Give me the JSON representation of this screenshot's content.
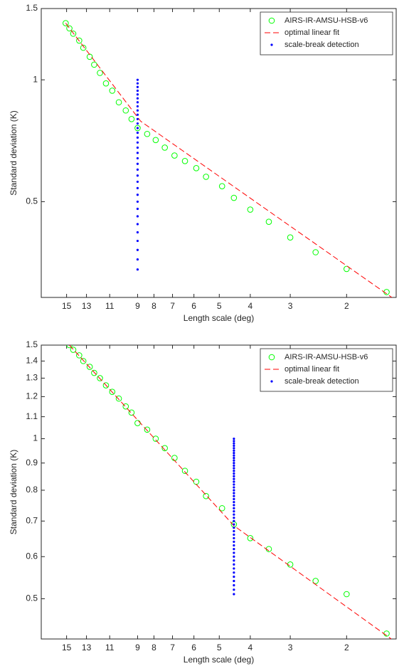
{
  "chart_data": [
    {
      "type": "line",
      "xlabel": "Length scale (deg)",
      "ylabel": "Standard deviation (K)",
      "xscale": "log",
      "yscale": "log",
      "xlim": [
        18,
        1.4
      ],
      "ylim": [
        0.29,
        1.5
      ],
      "xticks": [
        15,
        13,
        11,
        9,
        8,
        7,
        6,
        5,
        4,
        3,
        2
      ],
      "yticks": [
        0.5,
        1,
        1.5
      ],
      "legend": "upper right",
      "series": [
        {
          "name": "AIRS-IR-AMSU-HSB-v6",
          "color": "#00ff00",
          "style": "circle",
          "x": [
            15.1,
            14.7,
            14.3,
            13.7,
            13.3,
            12.7,
            12.3,
            11.8,
            11.3,
            10.8,
            10.3,
            9.8,
            9.4,
            9.0,
            8.4,
            7.9,
            7.4,
            6.9,
            6.4,
            5.9,
            5.5,
            4.9,
            4.5,
            4.0,
            3.5,
            3.0,
            2.5,
            2.0,
            1.5
          ],
          "values": [
            1.38,
            1.34,
            1.3,
            1.25,
            1.2,
            1.14,
            1.09,
            1.04,
            0.98,
            0.94,
            0.88,
            0.84,
            0.8,
            0.76,
            0.735,
            0.71,
            0.68,
            0.65,
            0.63,
            0.605,
            0.576,
            0.546,
            0.511,
            0.478,
            0.446,
            0.408,
            0.375,
            0.341,
            0.299
          ]
        },
        {
          "name": "optimal linear fit",
          "color": "#ff0000",
          "style": "dashed",
          "x": [
            15.1,
            8.8,
            1.4
          ],
          "values": [
            1.38,
            0.79,
            0.285
          ]
        },
        {
          "name": "scale-break detection",
          "color": "#0000ff",
          "style": "dot",
          "x": [
            9,
            9,
            9,
            9,
            9,
            9,
            9,
            9,
            9,
            9,
            9,
            9,
            9,
            9,
            9,
            9,
            9,
            9,
            9,
            9,
            9,
            9,
            9,
            9,
            9,
            9,
            9,
            9,
            9,
            9,
            9,
            9,
            9,
            9
          ],
          "values": [
            0.34,
            0.36,
            0.38,
            0.4,
            0.42,
            0.44,
            0.46,
            0.48,
            0.5,
            0.52,
            0.54,
            0.56,
            0.58,
            0.6,
            0.62,
            0.64,
            0.66,
            0.68,
            0.7,
            0.72,
            0.74,
            0.76,
            0.78,
            0.8,
            0.82,
            0.84,
            0.86,
            0.88,
            0.9,
            0.92,
            0.94,
            0.96,
            0.98,
            1.0
          ]
        }
      ]
    },
    {
      "type": "line",
      "xlabel": "Length scale (deg)",
      "ylabel": "Standard deviation (K)",
      "xscale": "log",
      "yscale": "log",
      "xlim": [
        18,
        1.4
      ],
      "ylim": [
        0.42,
        1.5
      ],
      "xticks": [
        15,
        13,
        11,
        9,
        8,
        7,
        6,
        5,
        4,
        3,
        2
      ],
      "yticks": [
        0.5,
        0.6,
        0.7,
        0.8,
        0.9,
        1,
        1.1,
        1.2,
        1.3,
        1.4,
        1.5
      ],
      "legend": "upper right",
      "series": [
        {
          "name": "AIRS-IR-AMSU-HSB-v6",
          "color": "#00ff00",
          "style": "circle",
          "x": [
            14.7,
            14.3,
            13.7,
            13.3,
            12.7,
            12.3,
            11.8,
            11.3,
            10.8,
            10.3,
            9.8,
            9.4,
            9.0,
            8.4,
            7.9,
            7.4,
            6.9,
            6.4,
            5.9,
            5.5,
            4.9,
            4.5,
            4.0,
            3.5,
            3.0,
            2.5,
            2.0,
            1.5
          ],
          "values": [
            1.5,
            1.47,
            1.435,
            1.4,
            1.365,
            1.33,
            1.3,
            1.26,
            1.225,
            1.19,
            1.15,
            1.12,
            1.07,
            1.04,
            1.0,
            0.96,
            0.92,
            0.87,
            0.83,
            0.78,
            0.74,
            0.69,
            0.65,
            0.62,
            0.58,
            0.54,
            0.51,
            0.43
          ]
        },
        {
          "name": "optimal linear fit",
          "color": "#ff0000",
          "style": "dashed",
          "x": [
            14.7,
            4.5,
            1.45
          ],
          "values": [
            1.5,
            0.686,
            0.42
          ]
        },
        {
          "name": "scale-break detection",
          "color": "#0000ff",
          "style": "dot",
          "x": [
            4.5,
            4.5,
            4.5,
            4.5,
            4.5,
            4.5,
            4.5,
            4.5,
            4.5,
            4.5,
            4.5,
            4.5,
            4.5,
            4.5,
            4.5,
            4.5,
            4.5,
            4.5,
            4.5,
            4.5,
            4.5,
            4.5,
            4.5,
            4.5,
            4.5,
            4.5,
            4.5,
            4.5,
            4.5,
            4.5,
            4.5,
            4.5,
            4.5,
            4.5,
            4.5,
            4.5,
            4.5,
            4.5,
            4.5,
            4.5,
            4.5,
            4.5,
            4.5,
            4.5,
            4.5,
            4.5,
            4.5,
            4.5,
            4.5,
            4.5
          ],
          "values": [
            0.51,
            0.52,
            0.53,
            0.54,
            0.55,
            0.56,
            0.57,
            0.58,
            0.59,
            0.6,
            0.61,
            0.62,
            0.63,
            0.64,
            0.65,
            0.66,
            0.67,
            0.68,
            0.69,
            0.7,
            0.71,
            0.72,
            0.73,
            0.74,
            0.75,
            0.76,
            0.77,
            0.78,
            0.79,
            0.8,
            0.81,
            0.82,
            0.83,
            0.84,
            0.85,
            0.86,
            0.87,
            0.88,
            0.89,
            0.9,
            0.91,
            0.92,
            0.93,
            0.94,
            0.95,
            0.96,
            0.97,
            0.98,
            0.99,
            1.0
          ]
        }
      ]
    }
  ]
}
